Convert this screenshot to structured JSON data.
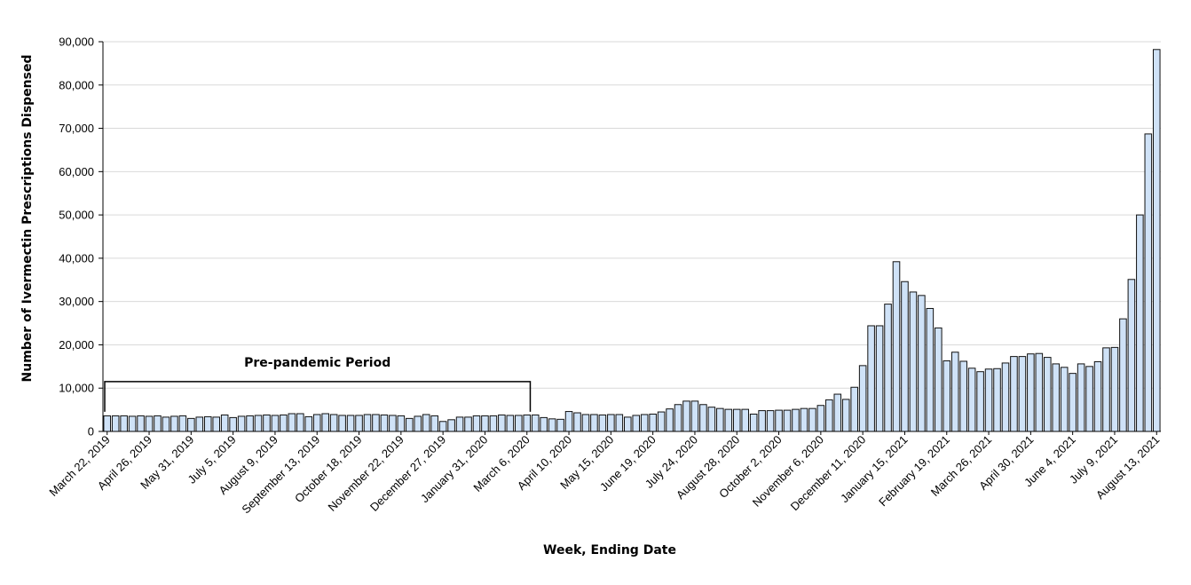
{
  "chart_data": {
    "type": "bar",
    "xlabel": "Week, Ending Date",
    "ylabel": "Number of Ivermectin Prescriptions Dispensed",
    "ylim": [
      0,
      90000
    ],
    "yticks": [
      0,
      10000,
      20000,
      30000,
      40000,
      50000,
      60000,
      70000,
      80000,
      90000
    ],
    "ytick_labels": [
      "0",
      "10,000",
      "20,000",
      "30,000",
      "40,000",
      "50,000",
      "60,000",
      "70,000",
      "80,000",
      "90,000"
    ],
    "grid": "horizontal",
    "bar_color": "#cfe2f7",
    "bar_edge_color": "#111111",
    "x_tick_labels": [
      {
        "index": 0,
        "label": "March 22, 2019"
      },
      {
        "index": 5,
        "label": "April 26, 2019"
      },
      {
        "index": 10,
        "label": "May 31, 2019"
      },
      {
        "index": 15,
        "label": "July 5, 2019"
      },
      {
        "index": 20,
        "label": "August 9, 2019"
      },
      {
        "index": 25,
        "label": "September 13, 2019"
      },
      {
        "index": 30,
        "label": "October 18, 2019"
      },
      {
        "index": 35,
        "label": "November 22, 2019"
      },
      {
        "index": 40,
        "label": "December 27, 2019"
      },
      {
        "index": 45,
        "label": "January 31, 2020"
      },
      {
        "index": 50,
        "label": "March 6, 2020"
      },
      {
        "index": 55,
        "label": "April 10, 2020"
      },
      {
        "index": 60,
        "label": "May 15, 2020"
      },
      {
        "index": 65,
        "label": "June 19, 2020"
      },
      {
        "index": 70,
        "label": "July 24, 2020"
      },
      {
        "index": 75,
        "label": "August 28, 2020"
      },
      {
        "index": 80,
        "label": "October 2, 2020"
      },
      {
        "index": 85,
        "label": "November 6, 2020"
      },
      {
        "index": 90,
        "label": "December 11, 2020"
      },
      {
        "index": 95,
        "label": "January 15, 2021"
      },
      {
        "index": 100,
        "label": "February 19, 2021"
      },
      {
        "index": 105,
        "label": "March 26, 2021"
      },
      {
        "index": 110,
        "label": "April 30, 2021"
      },
      {
        "index": 115,
        "label": "June 4, 2021"
      },
      {
        "index": 120,
        "label": "July 9, 2021"
      },
      {
        "index": 125,
        "label": "August 13, 2021"
      }
    ],
    "values": [
      3600,
      3600,
      3600,
      3500,
      3600,
      3500,
      3600,
      3300,
      3500,
      3600,
      3000,
      3300,
      3400,
      3300,
      3800,
      3200,
      3500,
      3600,
      3700,
      3800,
      3700,
      3800,
      4100,
      4100,
      3400,
      3900,
      4100,
      3900,
      3700,
      3700,
      3700,
      3900,
      3900,
      3800,
      3700,
      3600,
      3000,
      3500,
      3900,
      3600,
      2300,
      2700,
      3300,
      3300,
      3600,
      3600,
      3600,
      3800,
      3700,
      3700,
      3800,
      3800,
      3200,
      2900,
      2800,
      4600,
      4300,
      3900,
      3900,
      3800,
      3900,
      3900,
      3300,
      3700,
      3900,
      4000,
      4500,
      5200,
      6200,
      7000,
      7000,
      6200,
      5600,
      5300,
      5100,
      5100,
      5100,
      4000,
      4800,
      4800,
      4900,
      4900,
      5100,
      5300,
      5300,
      6000,
      7300,
      8600,
      7400,
      10200,
      15200,
      24400,
      24400,
      29400,
      39200,
      34600,
      32200,
      31400,
      28400,
      23900,
      16300,
      18300,
      16200,
      14600,
      13800,
      14400,
      14500,
      15800,
      17300,
      17300,
      17900,
      18000,
      17100,
      15600,
      14800,
      13400,
      15600,
      15000,
      16100,
      19300,
      19400,
      26000,
      35100,
      50000,
      68700,
      88200
    ],
    "annotations": [
      {
        "text": "Pre-pandemic Period",
        "bracket_from_index": 0,
        "bracket_to_index": 51,
        "value": 11500
      }
    ]
  }
}
